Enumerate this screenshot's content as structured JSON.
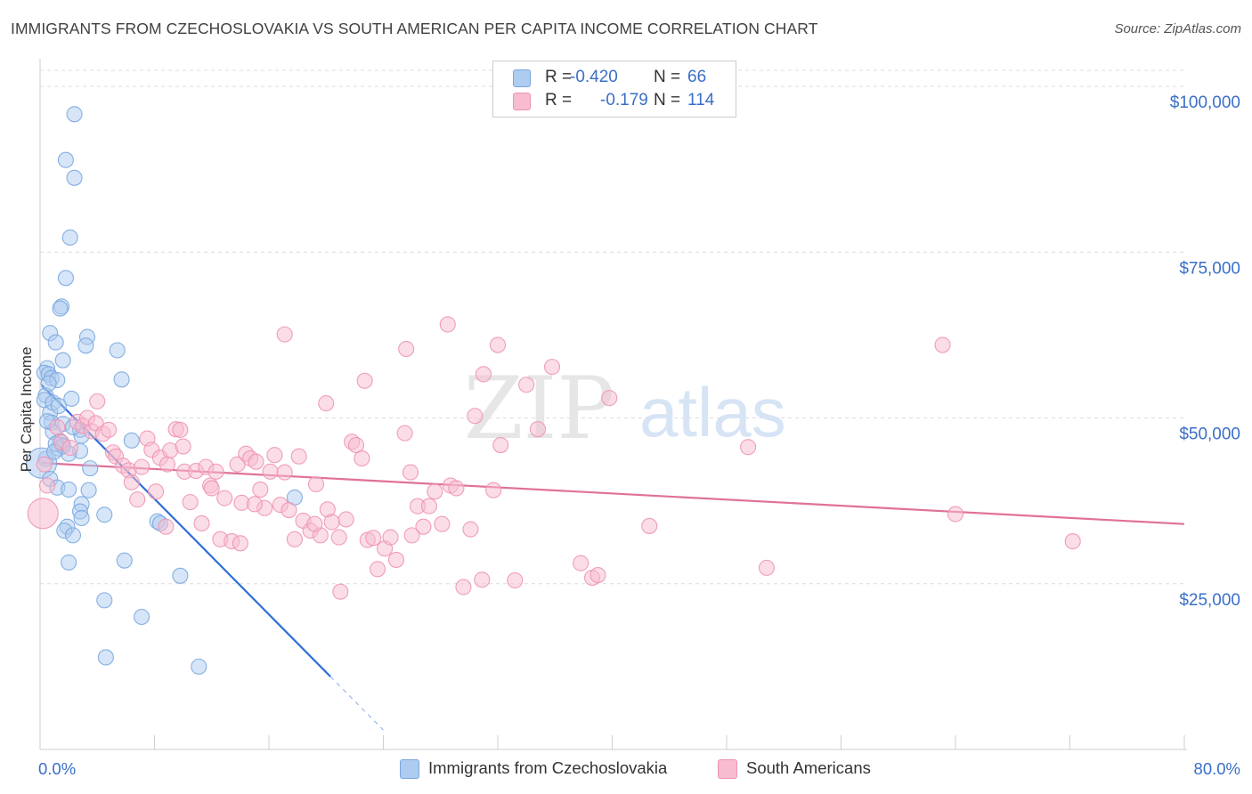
{
  "header": {
    "title": "IMMIGRANTS FROM CZECHOSLOVAKIA VS SOUTH AMERICAN PER CAPITA INCOME CORRELATION CHART",
    "source": "Source: ZipAtlas.com"
  },
  "legend": {
    "r_label": "R =",
    "n_label": "N =",
    "rows": [
      {
        "r": "-0.420",
        "n": "66",
        "fill": "#aecbf0",
        "stroke": "#7aa7e0"
      },
      {
        "r": "-0.179",
        "n": "114",
        "fill": "#f7bcd0",
        "stroke": "#ee93b2"
      }
    ]
  },
  "chart_data": {
    "type": "scatter",
    "title": "IMMIGRANTS FROM CZECHOSLOVAKIA VS SOUTH AMERICAN PER CAPITA INCOME CORRELATION CHART",
    "xlabel": "",
    "ylabel": "Per Capita Income",
    "xlim": [
      0,
      80
    ],
    "ylim": [
      0,
      105000
    ],
    "x_tick_labels": [
      "0.0%",
      "80.0%"
    ],
    "y_ticks": [
      25000,
      50000,
      75000,
      100000
    ],
    "y_tick_labels": [
      "$25,000",
      "$50,000",
      "$75,000",
      "$100,000"
    ],
    "watermark": "ZIPatlas",
    "series": [
      {
        "name": "Immigrants from Czechoslovakia",
        "color": "#7aa7e0",
        "fill": "#aecbf0",
        "r": -0.42,
        "n": 66,
        "trend": {
          "x0": 0.1,
          "y0": 55000,
          "x1": 20.3,
          "y1": 11000,
          "dash_to_x": 24.0
        },
        "points": [
          [
            2.4,
            95800
          ],
          [
            1.8,
            88900
          ],
          [
            2.4,
            86200
          ],
          [
            2.1,
            77200
          ],
          [
            1.8,
            71100
          ],
          [
            1.5,
            66800
          ],
          [
            1.4,
            66500
          ],
          [
            0.7,
            62800
          ],
          [
            3.3,
            62200
          ],
          [
            1.1,
            61400
          ],
          [
            3.2,
            60900
          ],
          [
            5.4,
            60200
          ],
          [
            0.5,
            57500
          ],
          [
            0.3,
            56800
          ],
          [
            0.6,
            56600
          ],
          [
            0.8,
            56000
          ],
          [
            1.2,
            55700
          ],
          [
            5.7,
            55800
          ],
          [
            0.4,
            53400
          ],
          [
            2.2,
            52900
          ],
          [
            0.3,
            52700
          ],
          [
            0.7,
            50800
          ],
          [
            0.8,
            49300
          ],
          [
            1.6,
            49100
          ],
          [
            2.8,
            48200
          ],
          [
            0.9,
            47900
          ],
          [
            1.4,
            46500
          ],
          [
            2.9,
            47300
          ],
          [
            6.4,
            46600
          ],
          [
            1.6,
            45900
          ],
          [
            1.3,
            45400
          ],
          [
            1.6,
            45700
          ],
          [
            2.8,
            45000
          ],
          [
            2.0,
            44600
          ],
          [
            0.4,
            43800
          ],
          [
            0.1,
            43200
          ],
          [
            3.5,
            42400
          ],
          [
            0.7,
            40800
          ],
          [
            1.2,
            39500
          ],
          [
            2.0,
            39200
          ],
          [
            3.4,
            39100
          ],
          [
            2.9,
            37000
          ],
          [
            2.8,
            35900
          ],
          [
            4.5,
            35400
          ],
          [
            2.9,
            34900
          ],
          [
            8.2,
            34400
          ],
          [
            8.4,
            34100
          ],
          [
            1.9,
            33600
          ],
          [
            1.7,
            33000
          ],
          [
            2.3,
            32300
          ],
          [
            17.8,
            38000
          ],
          [
            2.0,
            28200
          ],
          [
            5.9,
            28500
          ],
          [
            9.8,
            26200
          ],
          [
            4.5,
            22500
          ],
          [
            7.1,
            20000
          ],
          [
            4.6,
            13900
          ],
          [
            11.1,
            12500
          ],
          [
            0.5,
            49500
          ],
          [
            1.1,
            46100
          ],
          [
            0.9,
            52300
          ],
          [
            1.6,
            58700
          ],
          [
            2.3,
            48600
          ],
          [
            1.0,
            44900
          ],
          [
            0.6,
            55200
          ],
          [
            1.3,
            51800
          ]
        ]
      },
      {
        "name": "South Americans",
        "color": "#ee93b2",
        "fill": "#f7bcd0",
        "r": -0.179,
        "n": 114,
        "trend": {
          "x0": 0.1,
          "y0": 43200,
          "x1": 80.0,
          "y1": 34000
        },
        "points": [
          [
            0.2,
            35600
          ],
          [
            0.3,
            43000
          ],
          [
            0.5,
            39800
          ],
          [
            1.2,
            48600
          ],
          [
            1.5,
            46300
          ],
          [
            2.1,
            45500
          ],
          [
            2.6,
            49400
          ],
          [
            3.0,
            48800
          ],
          [
            3.3,
            50000
          ],
          [
            3.6,
            48000
          ],
          [
            3.9,
            49200
          ],
          [
            4.0,
            52500
          ],
          [
            4.4,
            47600
          ],
          [
            4.8,
            48200
          ],
          [
            5.1,
            44800
          ],
          [
            5.3,
            44200
          ],
          [
            5.8,
            42800
          ],
          [
            6.2,
            42100
          ],
          [
            6.4,
            40300
          ],
          [
            6.8,
            37700
          ],
          [
            7.1,
            42600
          ],
          [
            7.5,
            46900
          ],
          [
            7.8,
            45200
          ],
          [
            8.1,
            38900
          ],
          [
            8.4,
            44000
          ],
          [
            8.9,
            43000
          ],
          [
            9.1,
            45100
          ],
          [
            9.5,
            48300
          ],
          [
            9.8,
            48200
          ],
          [
            10.1,
            41900
          ],
          [
            10.5,
            37300
          ],
          [
            10.9,
            42000
          ],
          [
            11.3,
            34100
          ],
          [
            11.6,
            42600
          ],
          [
            11.9,
            39800
          ],
          [
            12.3,
            41900
          ],
          [
            12.6,
            31700
          ],
          [
            12.9,
            37900
          ],
          [
            13.4,
            31400
          ],
          [
            13.8,
            43000
          ],
          [
            14.1,
            37200
          ],
          [
            14.4,
            44600
          ],
          [
            14.7,
            43900
          ],
          [
            15.1,
            43400
          ],
          [
            15.4,
            39200
          ],
          [
            15.7,
            36400
          ],
          [
            16.1,
            41900
          ],
          [
            16.4,
            44400
          ],
          [
            16.8,
            36900
          ],
          [
            17.1,
            41800
          ],
          [
            17.4,
            36100
          ],
          [
            17.8,
            31700
          ],
          [
            18.1,
            44200
          ],
          [
            18.4,
            34500
          ],
          [
            18.9,
            33000
          ],
          [
            19.3,
            40000
          ],
          [
            19.6,
            32300
          ],
          [
            20.1,
            36200
          ],
          [
            20.4,
            34300
          ],
          [
            20.9,
            32000
          ],
          [
            21.4,
            34700
          ],
          [
            21.8,
            46400
          ],
          [
            22.1,
            45900
          ],
          [
            22.5,
            43900
          ],
          [
            22.9,
            31600
          ],
          [
            23.3,
            31900
          ],
          [
            23.6,
            27200
          ],
          [
            24.1,
            30300
          ],
          [
            24.5,
            32000
          ],
          [
            24.9,
            28600
          ],
          [
            25.5,
            47700
          ],
          [
            25.9,
            41800
          ],
          [
            26.4,
            36700
          ],
          [
            26.8,
            33600
          ],
          [
            27.2,
            36700
          ],
          [
            27.6,
            38900
          ],
          [
            28.1,
            34000
          ],
          [
            28.7,
            39800
          ],
          [
            29.1,
            39400
          ],
          [
            29.6,
            24500
          ],
          [
            30.1,
            33200
          ],
          [
            30.9,
            25600
          ],
          [
            31.7,
            39100
          ],
          [
            32.2,
            45900
          ],
          [
            33.2,
            25500
          ],
          [
            34.0,
            55000
          ],
          [
            34.8,
            48300
          ],
          [
            35.8,
            57700
          ],
          [
            37.8,
            28100
          ],
          [
            38.6,
            25900
          ],
          [
            39.0,
            26300
          ],
          [
            39.8,
            53000
          ],
          [
            42.6,
            33700
          ],
          [
            49.5,
            45600
          ],
          [
            50.8,
            27400
          ],
          [
            63.1,
            61000
          ],
          [
            64.0,
            35500
          ],
          [
            72.2,
            31400
          ],
          [
            17.1,
            62600
          ],
          [
            25.6,
            60400
          ],
          [
            28.5,
            64100
          ],
          [
            30.4,
            50300
          ],
          [
            31.0,
            56600
          ],
          [
            32.0,
            61000
          ],
          [
            22.7,
            55600
          ],
          [
            20.0,
            52200
          ],
          [
            12.0,
            39400
          ],
          [
            14.0,
            31100
          ],
          [
            19.2,
            34000
          ],
          [
            21.0,
            23800
          ],
          [
            26.0,
            32300
          ],
          [
            15.0,
            37000
          ],
          [
            10.0,
            45700
          ],
          [
            8.8,
            33600
          ]
        ]
      }
    ]
  },
  "bottom_legend": {
    "items": [
      {
        "label": "Immigrants from Czechoslovakia"
      },
      {
        "label": "South Americans"
      }
    ]
  }
}
